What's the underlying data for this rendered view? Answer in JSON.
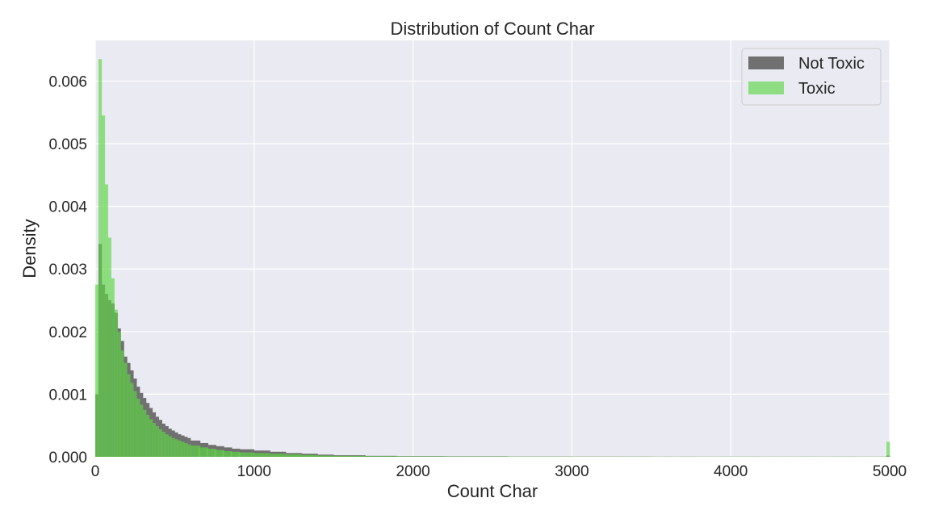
{
  "chart_data": {
    "type": "histogram",
    "title": "Distribution of Count Char",
    "xlabel": "Count Char",
    "ylabel": "Density",
    "xlim": [
      0,
      5000
    ],
    "ylim": [
      0,
      0.00665
    ],
    "x_ticks": [
      "0",
      "1000",
      "2000",
      "3000",
      "4000",
      "5000"
    ],
    "y_ticks": [
      "0.000",
      "0.001",
      "0.002",
      "0.003",
      "0.004",
      "0.005",
      "0.006"
    ],
    "x_tick_values": [
      0,
      1000,
      2000,
      3000,
      4000,
      5000
    ],
    "y_tick_values": [
      0,
      0.001,
      0.002,
      0.003,
      0.004,
      0.005,
      0.006
    ],
    "grid": true,
    "legend_position": "top-right",
    "bin_width": 20,
    "series": [
      {
        "name": "Not Toxic",
        "color": "#707070",
        "bin_starts": [
          0,
          20,
          40,
          60,
          80,
          100,
          120,
          140,
          160,
          180,
          200,
          220,
          240,
          260,
          280,
          300,
          320,
          340,
          360,
          380,
          400,
          420,
          440,
          460,
          480,
          500,
          520,
          540,
          560,
          580,
          600,
          650,
          700,
          750,
          800,
          850,
          900,
          1000,
          1100,
          1200,
          1300,
          1400,
          1500,
          1700,
          1900,
          2200,
          2600,
          3000,
          3500,
          4000,
          4500,
          4980
        ],
        "values": [
          0.001,
          0.0034,
          0.00275,
          0.0026,
          0.0025,
          0.00245,
          0.0023,
          0.00205,
          0.00185,
          0.0016,
          0.0015,
          0.00138,
          0.00125,
          0.00112,
          0.00102,
          0.00094,
          0.00086,
          0.00078,
          0.00071,
          0.00064,
          0.00059,
          0.00053,
          0.00049,
          0.00045,
          0.00042,
          0.00039,
          0.00036,
          0.00034,
          0.00032,
          0.0003,
          0.00026,
          0.00022,
          0.00019,
          0.00017,
          0.00015,
          0.00013,
          0.00012,
          0.0001,
          8e-05,
          6e-05,
          5e-05,
          3.5e-05,
          2.5e-05,
          1.5e-05,
          1e-05,
          8e-06,
          5e-06,
          4e-06,
          3e-06,
          3e-06,
          3e-06,
          2e-05
        ]
      },
      {
        "name": "Toxic",
        "color": "#5dd645",
        "bin_starts": [
          0,
          20,
          40,
          60,
          80,
          100,
          120,
          140,
          160,
          180,
          200,
          220,
          240,
          260,
          280,
          300,
          320,
          340,
          360,
          380,
          400,
          420,
          440,
          460,
          480,
          500,
          520,
          540,
          560,
          580,
          600,
          650,
          700,
          750,
          800,
          850,
          900,
          1000,
          1100,
          1200,
          1300,
          1400,
          1500,
          1700,
          1900,
          2200,
          2600,
          3000,
          3500,
          4000,
          4500,
          4980
        ],
        "values": [
          0.00275,
          0.00635,
          0.00545,
          0.00435,
          0.0035,
          0.00285,
          0.00235,
          0.002,
          0.0017,
          0.0015,
          0.00132,
          0.00118,
          0.00105,
          0.00093,
          0.00083,
          0.00075,
          0.00067,
          0.0006,
          0.00054,
          0.00049,
          0.00044,
          0.0004,
          0.00036,
          0.00033,
          0.0003,
          0.00028,
          0.00026,
          0.00024,
          0.00022,
          0.0002,
          0.00018,
          0.00015,
          0.00013,
          0.00011,
          9e-05,
          8e-05,
          7e-05,
          6e-05,
          5e-05,
          4e-05,
          3e-05,
          2e-05,
          1.5e-05,
          1e-05,
          7e-06,
          5e-06,
          4e-06,
          3e-06,
          3e-06,
          3e-06,
          3e-06,
          0.00024
        ]
      }
    ]
  }
}
